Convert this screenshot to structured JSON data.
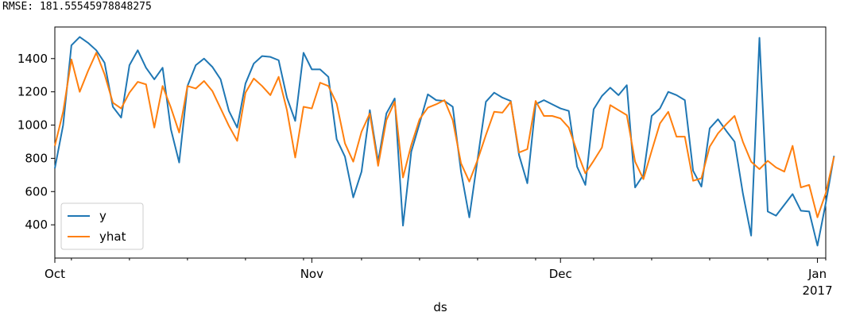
{
  "header": {
    "rmse_text": "RMSE: 181.55545978848275"
  },
  "chart_data": {
    "type": "line",
    "xlabel": "ds",
    "ylabel": "",
    "title": "",
    "x_start": "2016-10-01",
    "xlim": [
      0,
      93
    ],
    "ylim": [
      200,
      1590
    ],
    "yticks": [
      400,
      600,
      800,
      1000,
      1200,
      1400
    ],
    "grid": false,
    "legend_position": "lower-left",
    "x_major_ticks": [
      {
        "day": 0,
        "label": "Oct",
        "sublabel": ""
      },
      {
        "day": 31,
        "label": "Nov",
        "sublabel": ""
      },
      {
        "day": 61,
        "label": "Dec",
        "sublabel": ""
      },
      {
        "day": 92,
        "label": "Jan",
        "sublabel": "2017"
      }
    ],
    "x_minor_ticks": [
      2,
      9,
      16,
      23,
      30,
      37,
      44,
      51,
      58,
      65,
      72,
      79,
      86,
      93
    ],
    "series": [
      {
        "name": "y",
        "color": "#1f77b4",
        "values": [
          740,
          1000,
          1480,
          1530,
          1495,
          1450,
          1375,
          1110,
          1045,
          1360,
          1450,
          1345,
          1275,
          1345,
          975,
          775,
          1235,
          1360,
          1400,
          1350,
          1275,
          1085,
          985,
          1250,
          1370,
          1415,
          1410,
          1390,
          1165,
          1025,
          1435,
          1335,
          1335,
          1290,
          915,
          810,
          565,
          720,
          1090,
          780,
          1070,
          1160,
          395,
          840,
          1010,
          1185,
          1150,
          1145,
          1110,
          720,
          445,
          795,
          1140,
          1195,
          1165,
          1145,
          820,
          650,
          1125,
          1150,
          1125,
          1100,
          1085,
          750,
          640,
          1095,
          1175,
          1225,
          1180,
          1240,
          625,
          700,
          1055,
          1100,
          1200,
          1180,
          1150,
          725,
          630,
          980,
          1035,
          965,
          900,
          590,
          335,
          1525,
          480,
          455,
          520,
          585,
          485,
          480,
          275,
          530,
          815
        ]
      },
      {
        "name": "yhat",
        "color": "#ff7f0e",
        "values": [
          875,
          1080,
          1395,
          1200,
          1325,
          1435,
          1305,
          1135,
          1100,
          1195,
          1260,
          1245,
          985,
          1235,
          1105,
          955,
          1235,
          1220,
          1265,
          1205,
          1100,
          995,
          905,
          1195,
          1280,
          1235,
          1180,
          1290,
          1090,
          805,
          1110,
          1100,
          1255,
          1235,
          1130,
          890,
          780,
          960,
          1070,
          755,
          1030,
          1140,
          685,
          880,
          1035,
          1105,
          1125,
          1150,
          1030,
          770,
          660,
          790,
          940,
          1080,
          1075,
          1140,
          835,
          855,
          1145,
          1055,
          1055,
          1040,
          985,
          840,
          710,
          785,
          865,
          1120,
          1090,
          1060,
          780,
          675,
          845,
          1010,
          1080,
          930,
          930,
          665,
          680,
          870,
          950,
          1005,
          1055,
          900,
          780,
          735,
          785,
          745,
          720,
          875,
          625,
          640,
          445,
          590,
          810
        ]
      }
    ]
  }
}
